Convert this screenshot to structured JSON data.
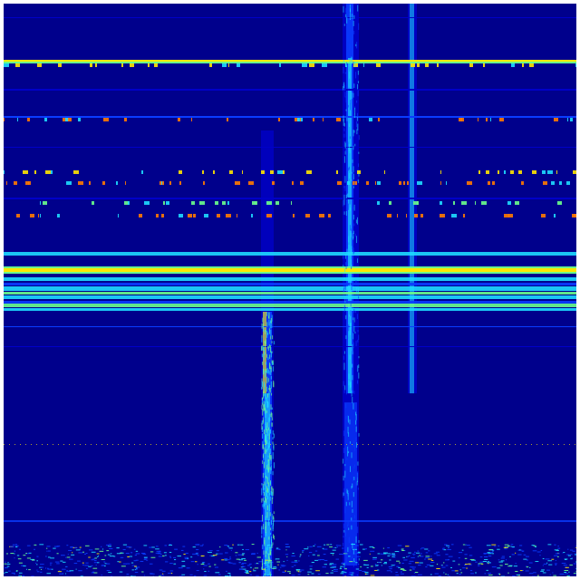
{
  "heatmap": {
    "colormap": "jet",
    "colors": {
      "background": "#00008c",
      "low": "#0000c8",
      "mid_blue": "#0a3cff",
      "cyan": "#1edcff",
      "green": "#6cff8a",
      "yellow": "#ffe600",
      "orange": "#ff7a00",
      "red": "#e00000"
    }
  }
}
